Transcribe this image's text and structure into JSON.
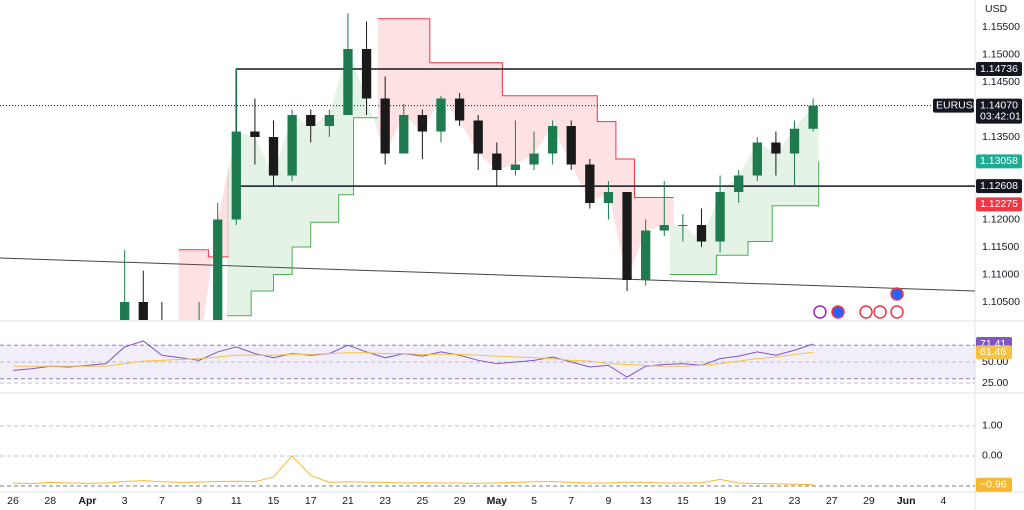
{
  "chart_data": [
    {
      "type": "candlestick",
      "symbol": "EURUSD",
      "currency": "USD",
      "countdown": "03:42:01",
      "xlim": [
        -0.7,
        51.7
      ],
      "ylim": [
        1.10173,
        1.15991
      ],
      "yticks": [
        {
          "value": 1.155,
          "label": "1.15500"
        },
        {
          "value": 1.15,
          "label": "1.15000"
        },
        {
          "value": 1.145,
          "label": "1.14500"
        },
        {
          "value": 1.135,
          "label": "1.13500"
        },
        {
          "value": 1.12,
          "label": "1.12000"
        },
        {
          "value": 1.115,
          "label": "1.11500"
        },
        {
          "value": 1.11,
          "label": "1.11000"
        },
        {
          "value": 1.105,
          "label": "1.10500"
        }
      ],
      "x": [
        6,
        7,
        8,
        9,
        10,
        11,
        12,
        13,
        14,
        15,
        16,
        17,
        18,
        19,
        20,
        21,
        22,
        23,
        24,
        25,
        26,
        27,
        28,
        29,
        30,
        31,
        32,
        33,
        34,
        35,
        36,
        37,
        38,
        39,
        40,
        41,
        42,
        43
      ],
      "open": [
        1.085,
        1.105,
        1.096,
        1.091,
        1.095,
        1.096,
        1.12,
        1.136,
        1.135,
        1.128,
        1.139,
        1.137,
        1.139,
        1.151,
        1.142,
        1.132,
        1.139,
        1.136,
        1.142,
        1.138,
        1.132,
        1.129,
        1.13,
        1.132,
        1.137,
        1.13,
        1.123,
        1.125,
        1.109,
        1.118,
        1.119,
        1.119,
        1.116,
        1.125,
        1.128,
        1.134,
        1.132,
        1.1365
      ],
      "high": [
        1.1145,
        1.1107,
        1.105,
        1.1,
        1.105,
        1.123,
        1.1475,
        1.142,
        1.138,
        1.14,
        1.14,
        1.14,
        1.1575,
        1.156,
        1.146,
        1.141,
        1.14,
        1.1425,
        1.143,
        1.139,
        1.134,
        1.138,
        1.136,
        1.138,
        1.138,
        1.131,
        1.127,
        1.125,
        1.12,
        1.127,
        1.121,
        1.122,
        1.128,
        1.129,
        1.135,
        1.136,
        1.138,
        1.142
      ],
      "low": [
        1.085,
        1.093,
        1.088,
        1.0905,
        1.093,
        1.096,
        1.119,
        1.13,
        1.126,
        1.127,
        1.134,
        1.135,
        1.139,
        1.139,
        1.13,
        1.132,
        1.131,
        1.134,
        1.137,
        1.129,
        1.126,
        1.128,
        1.129,
        1.13,
        1.129,
        1.122,
        1.12,
        1.107,
        1.108,
        1.117,
        1.116,
        1.115,
        1.114,
        1.123,
        1.127,
        1.128,
        1.126,
        1.136
      ],
      "close": [
        1.105,
        1.096,
        1.091,
        1.095,
        1.096,
        1.12,
        1.136,
        1.135,
        1.128,
        1.139,
        1.137,
        1.139,
        1.151,
        1.142,
        1.132,
        1.139,
        1.136,
        1.142,
        1.138,
        1.132,
        1.129,
        1.13,
        1.132,
        1.137,
        1.13,
        1.123,
        1.125,
        1.109,
        1.118,
        1.119,
        1.119,
        1.116,
        1.125,
        1.128,
        1.134,
        1.132,
        1.1365,
        1.1407
      ],
      "up_color": "#1e7b4f",
      "down_color": "#1a1a1a",
      "last_price": {
        "value": 1.1407,
        "label": "1.14070"
      },
      "high_line": {
        "x": 12,
        "value": 1.14736
      },
      "low_line": {
        "x": 12,
        "value": 1.12608
      },
      "sell_level": 1.12275,
      "supertrend": [
        {
          "color": "#f23645",
          "fill": "rgba(242,54,69,0.15)",
          "x": [
            8.9,
            10.5,
            11.6
          ],
          "values": [
            1.1145,
            1.1132,
            1.1132
          ]
        },
        {
          "color": "#f23645",
          "fill": "rgba(242,54,69,0.15)",
          "x": [
            19.6,
            22.4,
            25.6,
            26.3,
            31.4,
            32.4,
            33.4,
            35.5
          ],
          "values": [
            1.1565,
            1.1485,
            1.1485,
            1.1425,
            1.1378,
            1.131,
            1.124,
            1.124
          ]
        },
        {
          "color": "#4caf50",
          "fill": "rgba(76,175,80,0.15)",
          "x": [
            11.5,
            12.8,
            14,
            15,
            16,
            17.5,
            18.3,
            19.6
          ],
          "values": [
            1.1025,
            1.107,
            1.11,
            1.115,
            1.1195,
            1.1245,
            1.1385,
            1.1385
          ]
        },
        {
          "color": "#4caf50",
          "fill": "rgba(76,175,80,0.15)",
          "x": [
            35.3,
            37.8,
            39.5,
            40.8,
            42.2,
            43.3
          ],
          "values": [
            1.11,
            1.1135,
            1.116,
            1.1225,
            1.1225,
            1.13058
          ]
        }
      ],
      "trendline": {
        "x": [
          -0.7,
          51.7
        ],
        "values": [
          1.113,
          1.107
        ]
      }
    },
    {
      "type": "line",
      "xlim": [
        -0.7,
        51.7
      ],
      "ylim": [
        14.3,
        97.6
      ],
      "yticks": [
        {
          "value": 50,
          "label": "50.00"
        },
        {
          "value": 25,
          "label": "25.00"
        }
      ],
      "levels": [
        70,
        30
      ],
      "x": [
        0,
        1,
        2,
        3,
        4,
        5,
        6,
        7,
        8,
        9,
        10,
        11,
        12,
        13,
        14,
        15,
        16,
        17,
        18,
        19,
        20,
        21,
        22,
        23,
        24,
        25,
        26,
        27,
        28,
        29,
        30,
        31,
        32,
        33,
        34,
        35,
        36,
        37,
        38,
        39,
        40,
        41,
        42,
        43
      ],
      "series": [
        {
          "color": "#7e57c2",
          "values": [
            40,
            42,
            45,
            44,
            46,
            48,
            68,
            75,
            58,
            55,
            52,
            62,
            68,
            60,
            55,
            60,
            58,
            60,
            70,
            62,
            55,
            60,
            57,
            62,
            58,
            52,
            48,
            50,
            52,
            56,
            50,
            44,
            46,
            32,
            45,
            47,
            48,
            46,
            54,
            57,
            62,
            58,
            64,
            71.41
          ]
        },
        {
          "color": "#f5c342",
          "values": [
            45,
            45,
            45,
            45,
            45,
            45,
            48,
            51,
            52,
            53,
            54,
            56,
            58,
            58,
            58,
            59,
            59,
            60,
            61,
            61,
            60,
            60,
            59,
            59,
            59,
            58,
            57,
            56,
            55,
            54,
            52,
            51,
            48,
            47,
            46,
            45,
            45,
            46,
            48,
            51,
            54,
            56,
            59,
            61.46
          ]
        }
      ]
    },
    {
      "type": "line",
      "xlim": [
        -0.7,
        51.7
      ],
      "ylim": [
        -1.2,
        2.03
      ],
      "yticks": [
        {
          "value": 1,
          "label": "1.00"
        },
        {
          "value": 0,
          "label": "0.00"
        }
      ],
      "levels": [
        -1
      ],
      "x": [
        0,
        1,
        2,
        3,
        4,
        5,
        6,
        7,
        8,
        9,
        10,
        11,
        12,
        13,
        14,
        15,
        16,
        17,
        18,
        19,
        20,
        21,
        22,
        23,
        24,
        25,
        26,
        27,
        28,
        29,
        30,
        31,
        32,
        33,
        34,
        35,
        36,
        37,
        38,
        39,
        40,
        41,
        42,
        43
      ],
      "series": [
        {
          "color": "#f5b82e",
          "values": [
            -0.9,
            -0.92,
            -0.88,
            -0.9,
            -0.91,
            -0.9,
            -0.85,
            -0.82,
            -0.86,
            -0.88,
            -0.87,
            -0.85,
            -0.84,
            -0.86,
            -0.7,
            0.0,
            -0.65,
            -0.88,
            -0.86,
            -0.87,
            -0.88,
            -0.9,
            -0.89,
            -0.9,
            -0.9,
            -0.91,
            -0.9,
            -0.88,
            -0.86,
            -0.85,
            -0.88,
            -0.9,
            -0.9,
            -0.87,
            -0.88,
            -0.9,
            -0.9,
            -0.89,
            -0.78,
            -0.9,
            -0.92,
            -0.93,
            -0.94,
            -0.96
          ]
        }
      ],
      "current": {
        "value": -0.96,
        "label": "−0.96"
      },
      "xticks": [
        {
          "value": 0,
          "label": "26"
        },
        {
          "value": 2,
          "label": "28"
        },
        {
          "value": 4,
          "label": "Apr"
        },
        {
          "value": 6,
          "label": "3"
        },
        {
          "value": 8,
          "label": "7"
        },
        {
          "value": 10,
          "label": "9"
        },
        {
          "value": 12,
          "label": "11"
        },
        {
          "value": 14,
          "label": "15"
        },
        {
          "value": 16,
          "label": "17"
        },
        {
          "value": 18,
          "label": "21"
        },
        {
          "value": 20,
          "label": "23"
        },
        {
          "value": 22,
          "label": "25"
        },
        {
          "value": 24,
          "label": "29"
        },
        {
          "value": 26,
          "label": "May"
        },
        {
          "value": 28,
          "label": "5"
        },
        {
          "value": 30,
          "label": "7"
        },
        {
          "value": 32,
          "label": "9"
        },
        {
          "value": 34,
          "label": "13"
        },
        {
          "value": 36,
          "label": "15"
        },
        {
          "value": 38,
          "label": "19"
        },
        {
          "value": 40,
          "label": "21"
        },
        {
          "value": 42,
          "label": "23"
        },
        {
          "value": 44,
          "label": "27"
        },
        {
          "value": 46,
          "label": "29"
        },
        {
          "value": 48,
          "label": "Jun"
        },
        {
          "value": 50,
          "label": "4"
        }
      ]
    }
  ]
}
